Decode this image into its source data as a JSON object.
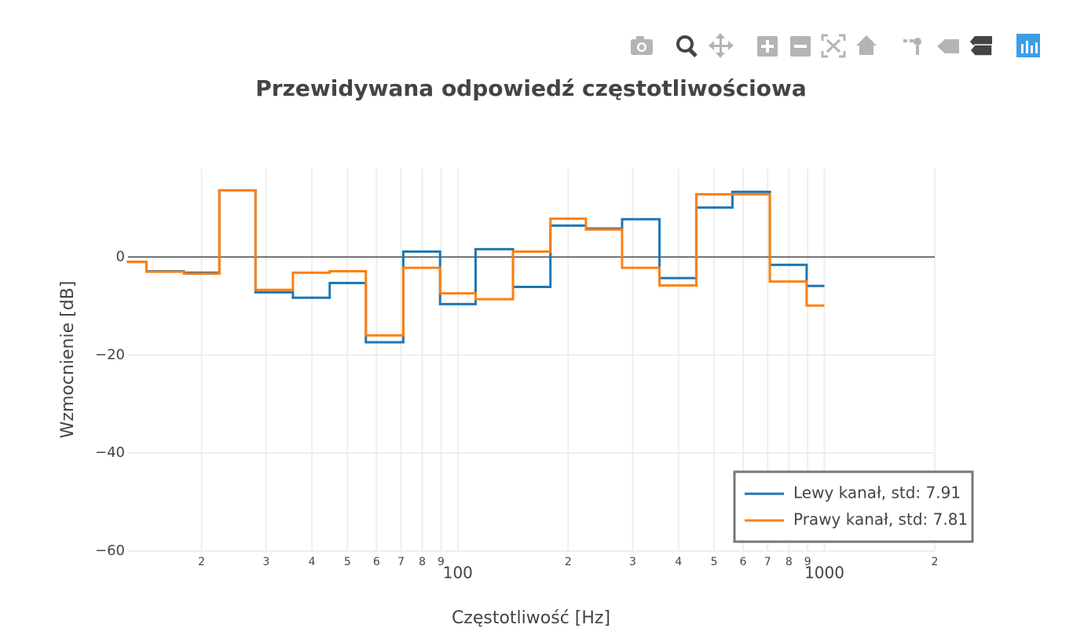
{
  "chart_data": {
    "type": "line",
    "title": "Przewidywana odpowiedź częstotliwościowa",
    "xlabel": "Częstotliwość [Hz]",
    "ylabel": "Wzmocnienie [dB]",
    "xscale": "log",
    "line_shape": "hvh",
    "x": [
      12.5,
      16,
      20,
      25,
      31.5,
      40,
      50,
      63,
      80,
      100,
      125,
      160,
      200,
      250,
      315,
      400,
      500,
      630,
      800,
      1000
    ],
    "series": [
      {
        "name": "Lewy kanał, std: 7.91",
        "color": "#1f77b4",
        "values": [
          -1.0,
          -2.9,
          -3.2,
          13.6,
          -7.2,
          -8.3,
          -5.3,
          -17.4,
          1.1,
          -9.6,
          1.6,
          -6.1,
          6.4,
          5.8,
          7.7,
          -4.3,
          10.1,
          13.3,
          -1.6,
          -5.9
        ]
      },
      {
        "name": "Prawy kanał, std: 7.81",
        "color": "#ff7f0e",
        "values": [
          -1.0,
          -3.0,
          -3.4,
          13.6,
          -6.7,
          -3.2,
          -2.9,
          -16.0,
          -2.2,
          -7.4,
          -8.6,
          1.1,
          7.8,
          5.6,
          -2.2,
          -5.8,
          12.8,
          12.8,
          -5.0,
          -9.9
        ]
      }
    ],
    "xlim": [
      12.6,
      2000
    ],
    "xticks": [
      {
        "value": 20,
        "label": "2"
      },
      {
        "value": 30,
        "label": "3"
      },
      {
        "value": 40,
        "label": "4"
      },
      {
        "value": 50,
        "label": "5"
      },
      {
        "value": 60,
        "label": "6"
      },
      {
        "value": 70,
        "label": "7"
      },
      {
        "value": 80,
        "label": "8"
      },
      {
        "value": 90,
        "label": "9"
      },
      100,
      {
        "value": 200,
        "label": "2"
      },
      {
        "value": 300,
        "label": "3"
      },
      {
        "value": 400,
        "label": "4"
      },
      {
        "value": 500,
        "label": "5"
      },
      {
        "value": 600,
        "label": "6"
      },
      {
        "value": 700,
        "label": "7"
      },
      {
        "value": 800,
        "label": "8"
      },
      {
        "value": 900,
        "label": "9"
      },
      1000,
      {
        "value": 2000,
        "label": "2"
      }
    ],
    "ylim": [
      -60,
      18
    ],
    "yticks": [
      0,
      {
        "value": -20,
        "label": "−20"
      },
      {
        "value": -40,
        "label": "−40"
      },
      {
        "value": -60,
        "label": "−60"
      }
    ],
    "grid": true,
    "legend": "lower right"
  }
}
